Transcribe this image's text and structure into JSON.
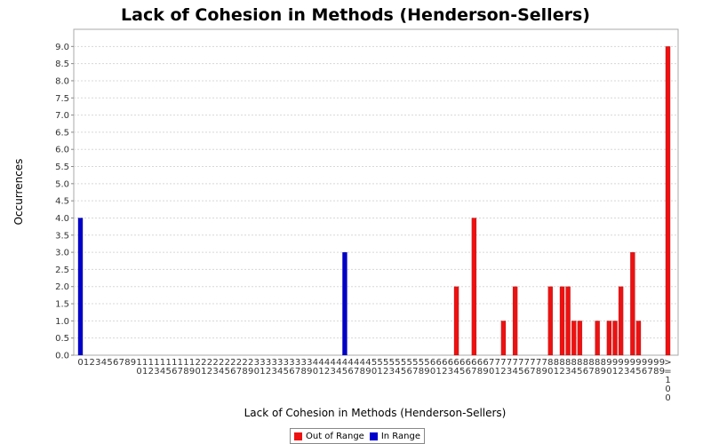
{
  "chart_data": {
    "type": "bar",
    "title": "Lack of Cohesion in Methods (Henderson-Sellers)",
    "xlabel": "Lack of Cohesion in Methods (Henderson-Sellers)",
    "ylabel": "Occurrences",
    "ylim": [
      0,
      9.5
    ],
    "yticks": [
      0.0,
      0.5,
      1.0,
      1.5,
      2.0,
      2.5,
      3.0,
      3.5,
      4.0,
      4.5,
      5.0,
      5.5,
      6.0,
      6.5,
      7.0,
      7.5,
      8.0,
      8.5,
      9.0
    ],
    "grid": true,
    "legend_position": "bottom",
    "categories": [
      "0",
      "1",
      "2",
      "3",
      "4",
      "5",
      "6",
      "7",
      "8",
      "9",
      "10",
      "11",
      "12",
      "13",
      "14",
      "15",
      "16",
      "17",
      "18",
      "19",
      "20",
      "21",
      "22",
      "23",
      "24",
      "25",
      "26",
      "27",
      "28",
      "29",
      "30",
      "31",
      "32",
      "33",
      "34",
      "35",
      "36",
      "37",
      "38",
      "39",
      "40",
      "41",
      "42",
      "43",
      "44",
      "45",
      "46",
      "47",
      "48",
      "49",
      "50",
      "51",
      "52",
      "53",
      "54",
      "55",
      "56",
      "57",
      "58",
      "59",
      "60",
      "61",
      "62",
      "63",
      "64",
      "65",
      "66",
      "67",
      "68",
      "69",
      "70",
      "71",
      "72",
      "73",
      "74",
      "75",
      "76",
      "77",
      "78",
      "79",
      "80",
      "81",
      "82",
      "83",
      "84",
      "85",
      "86",
      "87",
      "88",
      "89",
      "90",
      "91",
      "92",
      "93",
      "94",
      "95",
      "96",
      "97",
      "98",
      "99",
      ">=100"
    ],
    "series": [
      {
        "name": "Out of Range",
        "color": "#ee1111",
        "values": [
          0,
          0,
          0,
          0,
          0,
          0,
          0,
          0,
          0,
          0,
          0,
          0,
          0,
          0,
          0,
          0,
          0,
          0,
          0,
          0,
          0,
          0,
          0,
          0,
          0,
          0,
          0,
          0,
          0,
          0,
          0,
          0,
          0,
          0,
          0,
          0,
          0,
          0,
          0,
          0,
          0,
          0,
          0,
          0,
          0,
          0,
          0,
          0,
          0,
          0,
          0,
          0,
          0,
          0,
          0,
          0,
          0,
          0,
          0,
          0,
          0,
          0,
          0,
          0,
          2,
          0,
          0,
          4,
          0,
          0,
          0,
          0,
          1,
          0,
          2,
          0,
          0,
          0,
          0,
          0,
          2,
          0,
          2,
          2,
          1,
          1,
          0,
          0,
          1,
          0,
          1,
          1,
          2,
          0,
          3,
          1,
          0,
          0,
          0,
          0,
          9
        ]
      },
      {
        "name": "In Range",
        "color": "#0000cc",
        "values": [
          4,
          0,
          0,
          0,
          0,
          0,
          0,
          0,
          0,
          0,
          0,
          0,
          0,
          0,
          0,
          0,
          0,
          0,
          0,
          0,
          0,
          0,
          0,
          0,
          0,
          0,
          0,
          0,
          0,
          0,
          0,
          0,
          0,
          0,
          0,
          0,
          0,
          0,
          0,
          0,
          0,
          0,
          0,
          0,
          0,
          3,
          0,
          0,
          0,
          0,
          0,
          0,
          0,
          0,
          0,
          0,
          0,
          0,
          0,
          0,
          0,
          0,
          0,
          0,
          0,
          0,
          0,
          0,
          0,
          0,
          0,
          0,
          0,
          0,
          0,
          0,
          0,
          0,
          0,
          0,
          0,
          0,
          0,
          0,
          0,
          0,
          0,
          0,
          0,
          0,
          0,
          0,
          0,
          0,
          0,
          0,
          0,
          0,
          0,
          0,
          0
        ]
      }
    ]
  }
}
